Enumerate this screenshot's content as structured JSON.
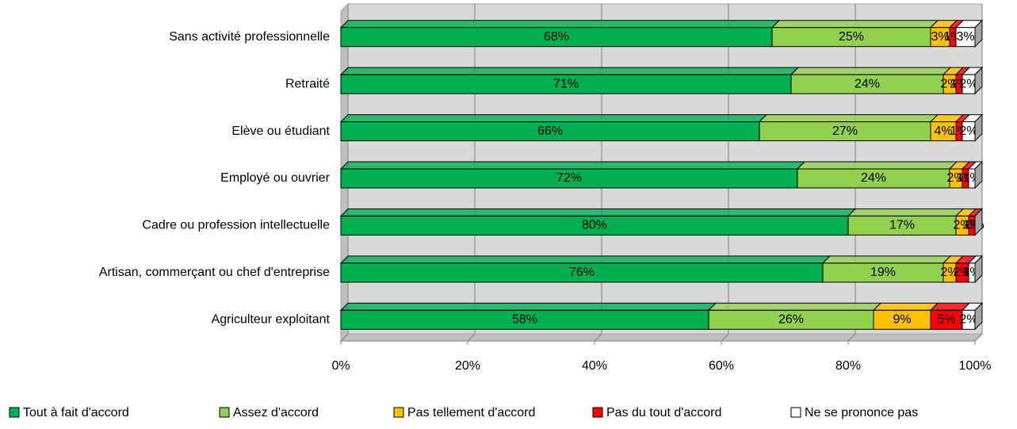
{
  "chart_data": {
    "type": "stacked-bar-horizontal",
    "categories": [
      "Sans activité professionnelle",
      "Retraité",
      "Elève ou étudiant",
      "Employé ou ouvrier",
      "Cadre ou profession intellectuelle",
      "Artisan, commerçant ou chef d'entreprise",
      "Agriculteur exploitant"
    ],
    "series": [
      {
        "name": "Tout à fait d'accord",
        "color": "#00b050",
        "values": [
          68,
          71,
          66,
          72,
          80,
          76,
          58
        ],
        "value_labels": [
          "68%",
          "71%",
          "66%",
          "72%",
          "80%",
          "76%",
          "58%"
        ]
      },
      {
        "name": "Assez d'accord",
        "color": "#92d050",
        "values": [
          25,
          24,
          27,
          24,
          17,
          19,
          26
        ],
        "value_labels": [
          "25%",
          "24%",
          "27%",
          "24%",
          "17%",
          "19%",
          "26%"
        ]
      },
      {
        "name": "Pas tellement d'accord",
        "color": "#ffc000",
        "values": [
          3,
          2,
          4,
          2,
          2,
          2,
          9
        ],
        "value_labels": [
          "3%",
          "2%",
          "4%",
          "2%",
          "2%",
          "2%",
          "9%"
        ]
      },
      {
        "name": "Pas du tout d'accord",
        "color": "#ff0000",
        "values": [
          1,
          1,
          1,
          1,
          1,
          2,
          5
        ],
        "value_labels": [
          "1%",
          "1%",
          "1%",
          "1%",
          "1%",
          "2%",
          "5%"
        ]
      },
      {
        "name": "Ne se prononce pas",
        "color": "#ffffff",
        "values": [
          3,
          2,
          2,
          1,
          0,
          1,
          2
        ],
        "value_labels": [
          "3%",
          "2%",
          "2%",
          "1%",
          "0%",
          "1%",
          "2%"
        ]
      }
    ],
    "xlim": [
      0,
      100
    ],
    "xticks": [
      {
        "value": 0,
        "label": "0%"
      },
      {
        "value": 20,
        "label": "20%"
      },
      {
        "value": 40,
        "label": "40%"
      },
      {
        "value": 60,
        "label": "60%"
      },
      {
        "value": 80,
        "label": "80%"
      },
      {
        "value": 100,
        "label": "100%"
      }
    ],
    "grid": true,
    "legend": "bottom"
  }
}
